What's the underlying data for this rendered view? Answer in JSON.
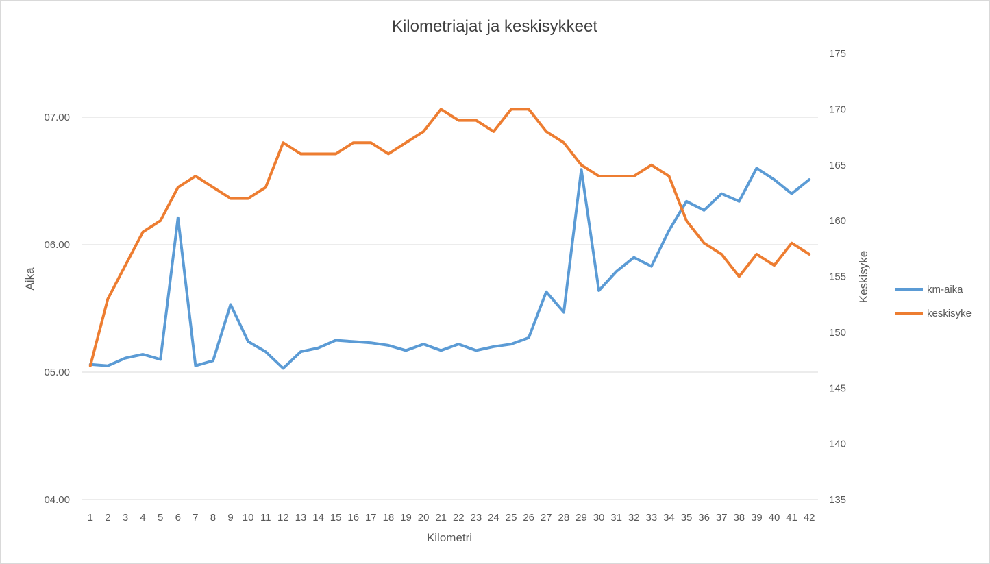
{
  "chart_data": {
    "type": "line",
    "title": "Kilometriajat ja keskisykkeet",
    "xlabel": "Kilometri",
    "ylabel": "Aika",
    "y2label": "Keskisyke",
    "categories": [
      "1",
      "2",
      "3",
      "4",
      "5",
      "6",
      "7",
      "8",
      "9",
      "10",
      "11",
      "12",
      "13",
      "14",
      "15",
      "16",
      "17",
      "18",
      "19",
      "20",
      "21",
      "22",
      "23",
      "24",
      "25",
      "26",
      "27",
      "28",
      "29",
      "30",
      "31",
      "32",
      "33",
      "34",
      "35",
      "36",
      "37",
      "38",
      "39",
      "40",
      "41",
      "42"
    ],
    "y_ticks": [
      "04.00",
      "05.00",
      "06.00",
      "07.00"
    ],
    "y_range_minutes": [
      4,
      7.5
    ],
    "y2_ticks": [
      "135",
      "140",
      "145",
      "150",
      "155",
      "160",
      "165",
      "170",
      "175"
    ],
    "y2_range": [
      135,
      175
    ],
    "grid": true,
    "legend_position": "right",
    "series": [
      {
        "name": "km-aika",
        "axis": "left",
        "color": "#5b9bd5",
        "values_minutes": [
          5.06,
          5.05,
          5.11,
          5.14,
          5.1,
          6.21,
          5.05,
          5.09,
          5.53,
          5.24,
          5.16,
          5.03,
          5.16,
          5.19,
          5.25,
          5.24,
          5.23,
          5.21,
          5.17,
          5.22,
          5.17,
          5.22,
          5.17,
          5.2,
          5.22,
          5.27,
          5.63,
          5.47,
          6.59,
          5.64,
          5.79,
          5.9,
          5.83,
          6.11,
          6.34,
          6.27,
          6.4,
          6.34,
          6.6,
          6.51,
          6.4,
          6.51
        ]
      },
      {
        "name": "keskisyke",
        "axis": "right",
        "color": "#ed7d31",
        "values": [
          147,
          153,
          156,
          159,
          160,
          163,
          164,
          163,
          162,
          162,
          163,
          167,
          166,
          166,
          166,
          167,
          167,
          166,
          167,
          168,
          170,
          169,
          169,
          168,
          170,
          170,
          168,
          167,
          165,
          164,
          164,
          164,
          165,
          164,
          160,
          158,
          157,
          155,
          157,
          156,
          158,
          157
        ]
      }
    ]
  }
}
